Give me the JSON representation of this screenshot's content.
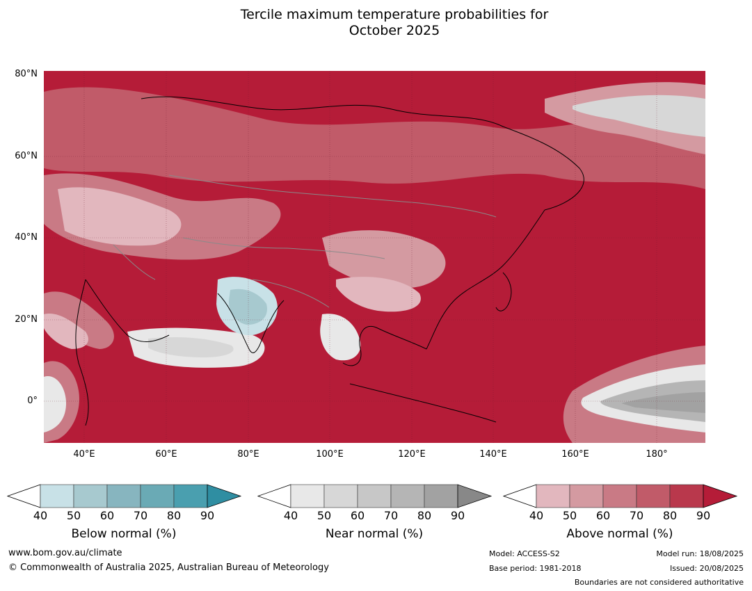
{
  "title_line1": "Tercile maximum temperature probabilities for",
  "title_line2": "October 2025",
  "lat_labels": [
    "80°N",
    "60°N",
    "40°N",
    "20°N",
    "0°"
  ],
  "lon_labels": [
    "40°E",
    "60°E",
    "80°E",
    "100°E",
    "120°E",
    "140°E",
    "160°E",
    "180°"
  ],
  "colorbars": [
    {
      "title": "Below normal (%)",
      "ticks": [
        "40",
        "50",
        "60",
        "70",
        "80",
        "90"
      ],
      "colors": [
        "#c8e1e7",
        "#a7c9cf",
        "#87b5bf",
        "#6aaab5",
        "#4a9faf",
        "#2f8ea2"
      ]
    },
    {
      "title": "Near normal (%)",
      "ticks": [
        "40",
        "50",
        "60",
        "70",
        "80",
        "90"
      ],
      "colors": [
        "#e8e8e8",
        "#d7d7d7",
        "#c7c7c7",
        "#b5b5b5",
        "#a2a2a2",
        "#888888"
      ]
    },
    {
      "title": "Above normal (%)",
      "ticks": [
        "40",
        "50",
        "60",
        "70",
        "80",
        "90"
      ],
      "colors": [
        "#e2b7be",
        "#d49aa1",
        "#c97a85",
        "#c15b69",
        "#b9384c",
        "#b51c38"
      ]
    }
  ],
  "footer": {
    "website": "www.bom.gov.au/climate",
    "copyright": "© Commonwealth of Australia 2025, Australian Bureau of Meteorology",
    "model": "Model: ACCESS-S2",
    "base_period": "Base period: 1981-2018",
    "model_run": "Model run: 18/08/2025",
    "issued": "Issued: 20/08/2025",
    "disclaimer": "Boundaries are not considered authoritative"
  }
}
